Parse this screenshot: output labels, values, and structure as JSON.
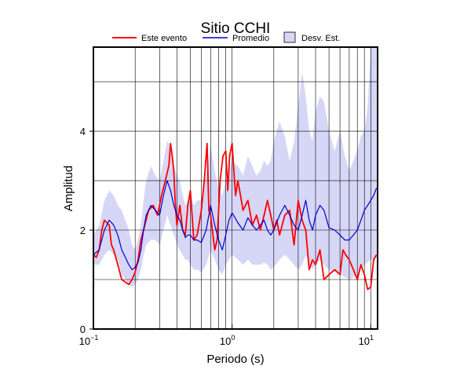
{
  "chart_data": {
    "type": "line",
    "title": "Sitio CCHI",
    "xlabel": "Periodo (s)",
    "ylabel": "Amplitud",
    "x_scale": "log",
    "xlim": [
      0.1,
      11.2
    ],
    "ylim": [
      0,
      5.7
    ],
    "x_ticks": [
      {
        "value": 0.1,
        "base": "10",
        "exp": "−1"
      },
      {
        "value": 1,
        "base": "10",
        "exp": "0"
      },
      {
        "value": 10,
        "base": "10",
        "exp": "1"
      }
    ],
    "y_ticks": [
      0,
      2,
      4
    ],
    "grid": true,
    "legend_position": "top",
    "legend": {
      "event_label": "Este evento",
      "mean_label": "Promedio",
      "std_label": "Desv. Est."
    },
    "colors": {
      "event": "#ff0000",
      "mean": "#0000cc",
      "std_fill": "#d6d6f7",
      "grid": "#000000"
    },
    "series": [
      {
        "name": "Este evento",
        "x": [
          0.1,
          0.105,
          0.11,
          0.115,
          0.12,
          0.125,
          0.13,
          0.135,
          0.14,
          0.15,
          0.16,
          0.17,
          0.18,
          0.19,
          0.2,
          0.21,
          0.22,
          0.23,
          0.25,
          0.27,
          0.29,
          0.31,
          0.33,
          0.35,
          0.36,
          0.37,
          0.38,
          0.39,
          0.4,
          0.42,
          0.44,
          0.46,
          0.48,
          0.5,
          0.53,
          0.56,
          0.6,
          0.63,
          0.66,
          0.68,
          0.7,
          0.72,
          0.75,
          0.78,
          0.82,
          0.86,
          0.9,
          0.93,
          0.96,
          1.0,
          1.03,
          1.06,
          1.1,
          1.15,
          1.2,
          1.3,
          1.4,
          1.5,
          1.6,
          1.7,
          1.8,
          1.9,
          2.0,
          2.1,
          2.2,
          2.4,
          2.6,
          2.8,
          3.0,
          3.2,
          3.4,
          3.6,
          3.8,
          4.0,
          4.3,
          4.6,
          5.0,
          5.5,
          6.0,
          6.3,
          6.6,
          7.0,
          7.5,
          8.0,
          8.5,
          9.0,
          9.5,
          10.0,
          10.5,
          11.0
        ],
        "values": [
          1.5,
          1.45,
          1.6,
          2.0,
          2.2,
          2.15,
          2.1,
          1.7,
          1.6,
          1.3,
          1.0,
          0.95,
          0.9,
          1.0,
          1.15,
          1.4,
          1.8,
          2.0,
          2.4,
          2.5,
          2.3,
          2.7,
          3.0,
          3.3,
          3.75,
          3.5,
          3.2,
          2.5,
          2.1,
          2.5,
          2.0,
          1.9,
          2.5,
          2.8,
          1.8,
          1.9,
          2.4,
          3.0,
          3.75,
          2.4,
          2.3,
          2.0,
          1.6,
          1.8,
          3.0,
          3.5,
          3.6,
          2.8,
          3.5,
          3.75,
          3.2,
          2.7,
          3.0,
          2.7,
          2.4,
          2.6,
          2.1,
          2.3,
          2.0,
          2.3,
          2.6,
          2.3,
          2.0,
          2.2,
          1.9,
          2.3,
          2.4,
          1.7,
          2.6,
          2.2,
          2.0,
          1.2,
          1.4,
          1.3,
          1.6,
          1.0,
          1.1,
          1.2,
          1.1,
          1.6,
          1.5,
          1.4,
          1.2,
          1.0,
          1.3,
          1.1,
          0.8,
          0.85,
          1.4,
          1.5
        ]
      },
      {
        "name": "Promedio",
        "x": [
          0.1,
          0.11,
          0.12,
          0.13,
          0.14,
          0.15,
          0.16,
          0.17,
          0.18,
          0.19,
          0.2,
          0.21,
          0.22,
          0.23,
          0.24,
          0.26,
          0.28,
          0.3,
          0.32,
          0.34,
          0.36,
          0.38,
          0.4,
          0.42,
          0.44,
          0.46,
          0.48,
          0.5,
          0.53,
          0.56,
          0.6,
          0.65,
          0.7,
          0.75,
          0.8,
          0.85,
          0.9,
          0.95,
          1.0,
          1.1,
          1.2,
          1.3,
          1.4,
          1.5,
          1.6,
          1.7,
          1.8,
          1.9,
          2.0,
          2.2,
          2.4,
          2.6,
          2.8,
          3.0,
          3.2,
          3.4,
          3.6,
          3.8,
          4.0,
          4.3,
          4.6,
          5.0,
          5.5,
          6.0,
          6.5,
          7.0,
          7.5,
          8.0,
          8.5,
          9.0,
          9.5,
          10.0,
          10.5,
          11.0
        ],
        "values": [
          1.5,
          1.6,
          2.0,
          2.2,
          2.1,
          1.9,
          1.6,
          1.45,
          1.3,
          1.2,
          1.25,
          1.35,
          1.6,
          2.0,
          2.3,
          2.5,
          2.4,
          2.3,
          2.7,
          3.0,
          2.8,
          2.5,
          2.3,
          2.2,
          2.0,
          1.85,
          1.9,
          1.9,
          1.8,
          1.8,
          1.75,
          2.0,
          2.5,
          2.1,
          1.8,
          1.6,
          1.9,
          2.2,
          2.35,
          2.15,
          2.0,
          2.25,
          2.1,
          2.0,
          2.1,
          2.2,
          2.0,
          1.9,
          2.0,
          2.3,
          2.5,
          2.3,
          2.1,
          2.0,
          2.3,
          2.6,
          2.2,
          2.0,
          2.3,
          2.5,
          2.4,
          2.05,
          2.0,
          1.9,
          1.8,
          1.8,
          1.9,
          2.0,
          2.2,
          2.4,
          2.5,
          2.6,
          2.7,
          2.85
        ]
      }
    ],
    "std_band": {
      "name": "Desv. Est.",
      "x": [
        0.1,
        0.11,
        0.12,
        0.13,
        0.14,
        0.15,
        0.16,
        0.17,
        0.18,
        0.19,
        0.2,
        0.21,
        0.22,
        0.23,
        0.24,
        0.26,
        0.28,
        0.3,
        0.32,
        0.34,
        0.36,
        0.38,
        0.4,
        0.42,
        0.44,
        0.46,
        0.48,
        0.5,
        0.53,
        0.56,
        0.6,
        0.65,
        0.7,
        0.75,
        0.8,
        0.85,
        0.9,
        0.95,
        1.0,
        1.1,
        1.2,
        1.3,
        1.4,
        1.5,
        1.6,
        1.7,
        1.8,
        1.9,
        2.0,
        2.2,
        2.4,
        2.6,
        2.8,
        3.0,
        3.2,
        3.4,
        3.6,
        3.8,
        4.0,
        4.3,
        4.6,
        5.0,
        5.5,
        6.0,
        6.5,
        7.0,
        7.5,
        8.0,
        8.5,
        9.0,
        9.5,
        10.0,
        10.5,
        11.0
      ],
      "upper": [
        1.9,
        2.1,
        2.6,
        2.8,
        2.7,
        2.5,
        2.4,
        2.2,
        2.0,
        1.7,
        1.6,
        1.8,
        2.1,
        2.6,
        3.0,
        3.3,
        3.1,
        3.0,
        3.4,
        3.8,
        3.7,
        3.3,
        3.1,
        3.0,
        2.7,
        2.5,
        2.6,
        2.7,
        2.5,
        2.6,
        2.6,
        3.1,
        3.7,
        3.2,
        2.8,
        2.7,
        3.0,
        3.2,
        3.4,
        3.3,
        3.1,
        3.5,
        3.3,
        3.1,
        3.2,
        3.4,
        3.3,
        3.4,
        3.8,
        4.2,
        3.9,
        3.4,
        3.8,
        4.5,
        5.2,
        4.7,
        4.0,
        3.8,
        4.4,
        4.7,
        4.6,
        4.0,
        3.6,
        4.0,
        3.5,
        3.2,
        3.4,
        3.6,
        3.9,
        4.0,
        4.5,
        5.7,
        5.7,
        5.7
      ],
      "lower": [
        1.3,
        1.3,
        1.5,
        1.6,
        1.5,
        1.4,
        1.1,
        1.0,
        0.9,
        0.85,
        0.9,
        1.0,
        1.2,
        1.5,
        1.7,
        1.8,
        1.8,
        1.7,
        2.0,
        2.3,
        2.1,
        1.9,
        1.7,
        1.6,
        1.5,
        1.4,
        1.4,
        1.3,
        1.2,
        1.2,
        1.15,
        1.3,
        1.6,
        1.4,
        1.2,
        1.1,
        1.3,
        1.4,
        1.5,
        1.4,
        1.3,
        1.4,
        1.3,
        1.3,
        1.3,
        1.35,
        1.3,
        1.2,
        1.25,
        1.4,
        1.5,
        1.4,
        1.3,
        1.2,
        1.3,
        1.5,
        1.3,
        1.2,
        1.3,
        1.4,
        1.3,
        1.2,
        1.15,
        1.1,
        1.05,
        1.0,
        1.05,
        1.1,
        1.2,
        1.3,
        1.35,
        1.4,
        1.4,
        1.45
      ]
    }
  }
}
